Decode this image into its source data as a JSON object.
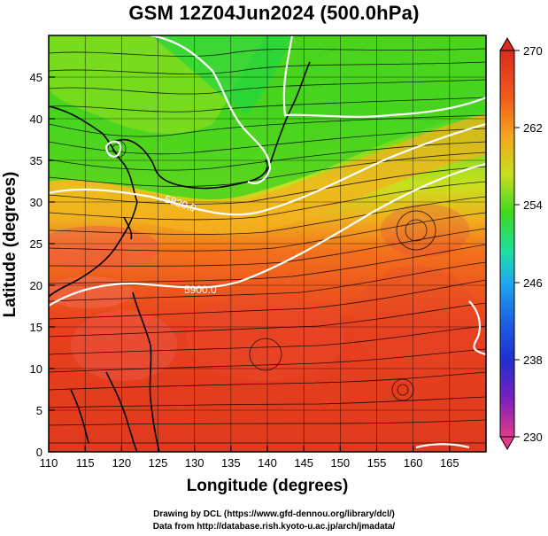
{
  "title": "GSM 12Z04Jun2024 (500.0hPa)",
  "x_axis": {
    "label": "Longitude (degrees)",
    "min": 110,
    "max": 170,
    "ticks": [
      "110",
      "115",
      "120",
      "125",
      "130",
      "135",
      "140",
      "145",
      "150",
      "155",
      "160",
      "165"
    ],
    "tick_values": [
      110,
      115,
      120,
      125,
      130,
      135,
      140,
      145,
      150,
      155,
      160,
      165
    ]
  },
  "y_axis": {
    "label": "Latitude (degrees)",
    "min": 0,
    "max": 50,
    "ticks": [
      "0",
      "5",
      "10",
      "15",
      "20",
      "25",
      "30",
      "35",
      "40",
      "45"
    ],
    "tick_values": [
      0,
      5,
      10,
      15,
      20,
      25,
      30,
      35,
      40,
      45
    ]
  },
  "colorbar": {
    "min": 230,
    "max": 270,
    "labels": [
      "270",
      "262",
      "254",
      "246",
      "238",
      "230"
    ],
    "label_values": [
      270,
      262,
      254,
      246,
      238,
      230
    ],
    "colors": [
      "#e23a8a",
      "#b02db0",
      "#5a1fc0",
      "#1f2fd0",
      "#1c62e6",
      "#1da9f0",
      "#1ee0c8",
      "#22d660",
      "#4fd81e",
      "#a8e01e",
      "#e8e01e",
      "#f5a41e",
      "#f26a1c",
      "#e8401e",
      "#dc2a1e"
    ]
  },
  "contours": {
    "label_5900": "5900.0",
    "label_5820": "5820.0"
  },
  "credits": {
    "line1": "Drawing by DCL (https://www.gfd-dennou.org/library/dcl/)",
    "line2": "Data from http://database.rish.kyoto-u.ac.jp/arch/jmadata/"
  }
}
